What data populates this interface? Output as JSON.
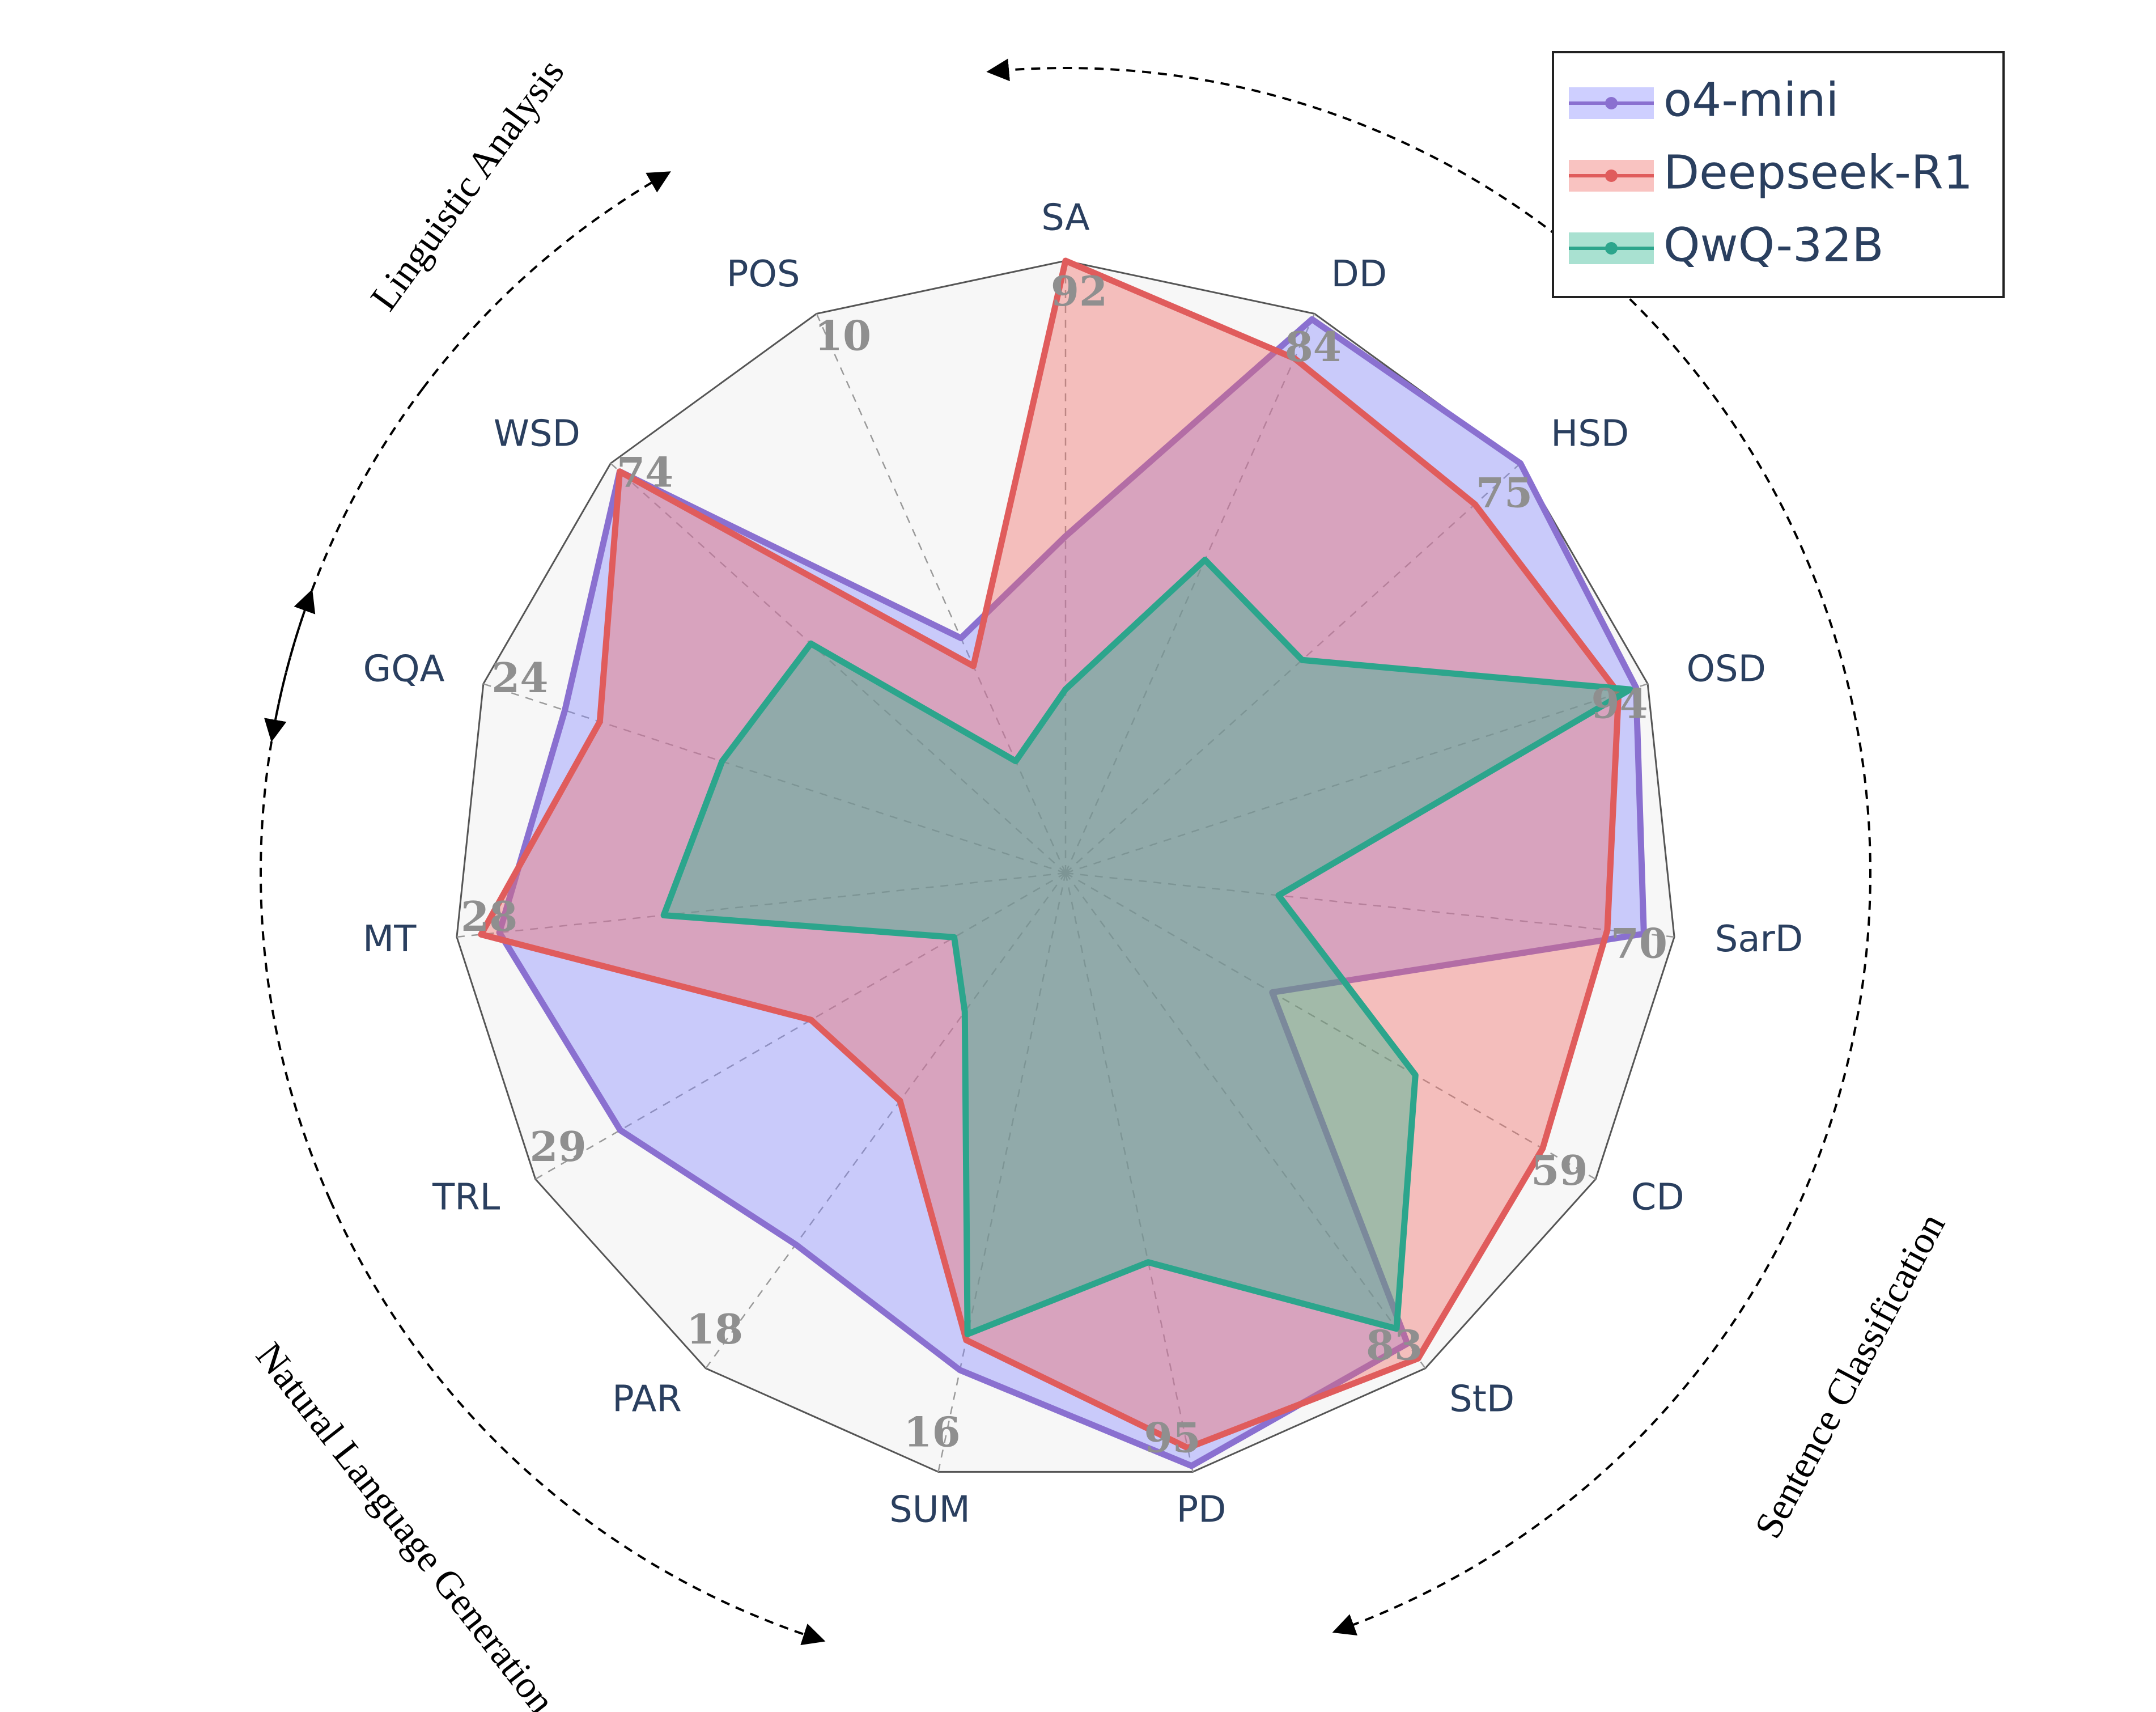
{
  "chart_data": {
    "type": "radar",
    "categories": [
      "SA",
      "DD",
      "HSD",
      "OSD",
      "SarD",
      "CD",
      "StD",
      "PD",
      "SUM",
      "PAR",
      "TRL",
      "MT",
      "GQA",
      "WSD",
      "POS"
    ],
    "axis_max_values": [
      92,
      84,
      75,
      94,
      70,
      59,
      83,
      95,
      16,
      18,
      29,
      28,
      24,
      74,
      10
    ],
    "series": [
      {
        "name": "o4-mini",
        "color": "#8a70d0",
        "fill": "rgba(126,130,255,0.38)",
        "values": [
          0.55,
          0.99,
          1.0,
          0.98,
          0.95,
          0.39,
          0.95,
          0.99,
          0.83,
          0.75,
          0.84,
          0.93,
          0.86,
          0.98,
          0.42
        ]
      },
      {
        "name": "Deepseek-R1",
        "color": "#e05c5c",
        "fill": "rgba(239,106,100,0.40)",
        "values": [
          1.0,
          0.92,
          0.9,
          0.95,
          0.89,
          0.9,
          0.98,
          0.96,
          0.78,
          0.46,
          0.48,
          0.96,
          0.8,
          0.98,
          0.37
        ]
      },
      {
        "name": "QwQ-32B",
        "color": "#2ca58c",
        "fill": "rgba(40,180,140,0.40)",
        "values": [
          0.3,
          0.56,
          0.52,
          0.97,
          0.35,
          0.66,
          0.92,
          0.65,
          0.77,
          0.28,
          0.21,
          0.66,
          0.59,
          0.56,
          0.2
        ]
      }
    ],
    "rlim": [
      0,
      1
    ],
    "legend_position": "top-right",
    "groups": [
      {
        "label": "Linguistic Analysis"
      },
      {
        "label": "Sentence Classification"
      },
      {
        "label": "Natural Language Generation"
      }
    ]
  }
}
